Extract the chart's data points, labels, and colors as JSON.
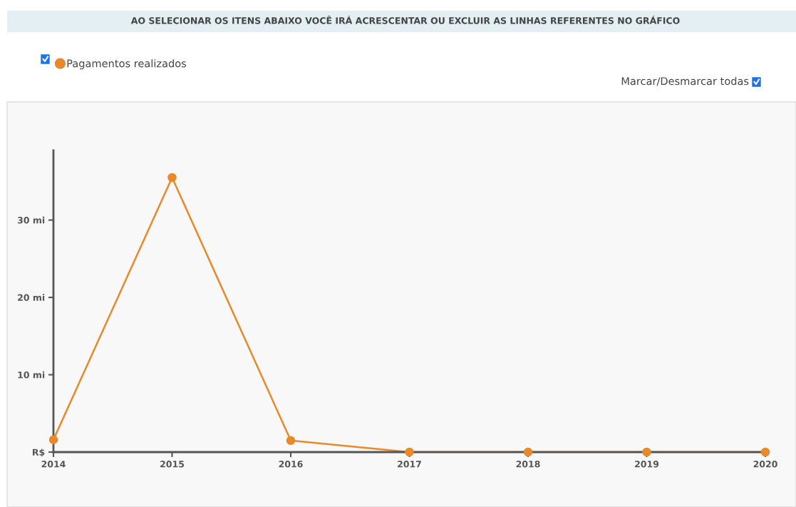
{
  "chart_data": {
    "type": "line",
    "title": "AO SELECIONAR OS ITENS ABAIXO VOCÊ IRÁ ACRESCENTAR OU EXCLUIR AS LINHAS REFERENTES NO GRÁFICO",
    "categories": [
      "2014",
      "2015",
      "2016",
      "2017",
      "2018",
      "2019",
      "2020"
    ],
    "series": [
      {
        "name": "Pagamentos realizados",
        "color": "#e8892a",
        "values": [
          1.6,
          35.5,
          1.5,
          0,
          0,
          0,
          0
        ]
      }
    ],
    "ylim": [
      0,
      39
    ],
    "yticks": [
      {
        "value": 0,
        "label": "R$"
      },
      {
        "value": 10,
        "label": "10 mi"
      },
      {
        "value": 20,
        "label": "20 mi"
      },
      {
        "value": 30,
        "label": "30 mi"
      }
    ],
    "annotations": [
      "Marcar/Desmarcar todas"
    ],
    "legend": "top left",
    "grid": false,
    "marker": "circle",
    "line_style": "solid"
  }
}
